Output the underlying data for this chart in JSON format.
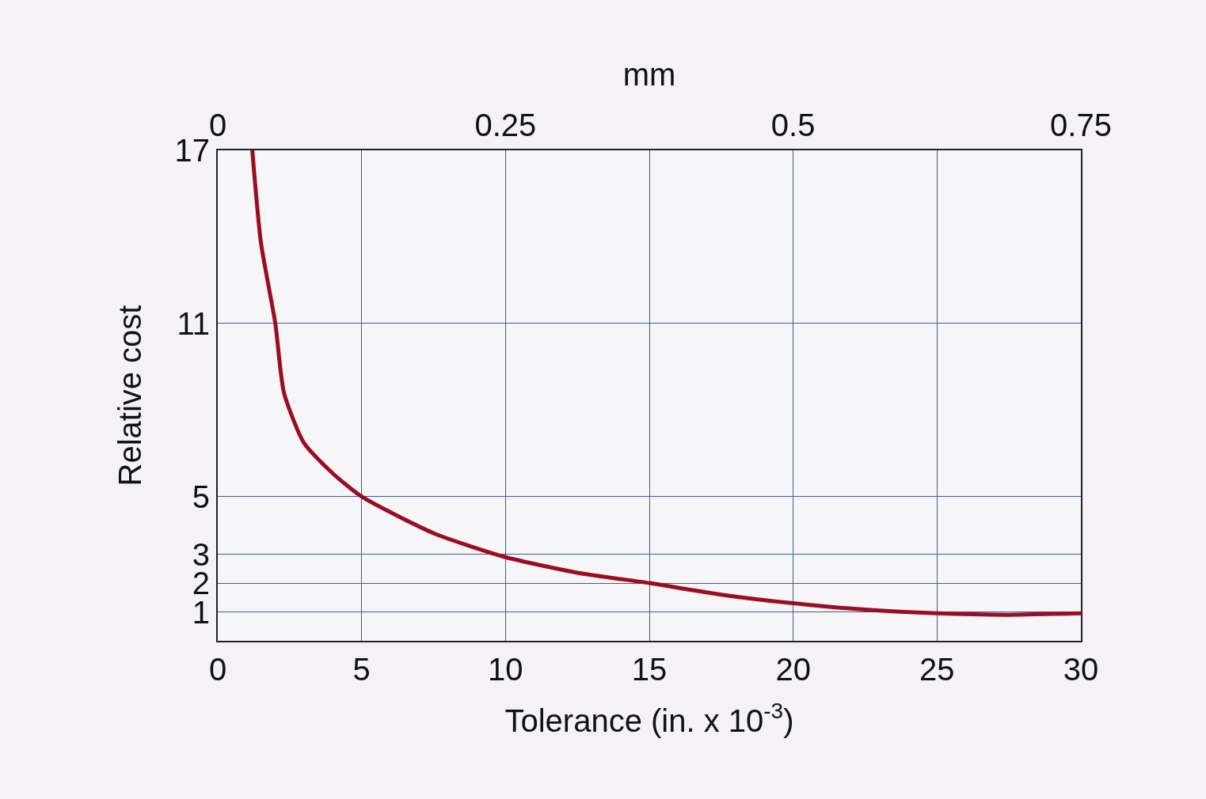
{
  "chart_data": {
    "type": "line",
    "xlabel": "Tolerance (in. x 10$^{-3}$)",
    "ylabel": "Relative cost",
    "x2label": "mm",
    "xlim": [
      0,
      30
    ],
    "xticks": [
      0,
      5,
      10,
      15,
      20,
      25,
      30
    ],
    "x2lim": [
      0,
      0.75
    ],
    "x2ticks": [
      0,
      0.25,
      0.5,
      0.75
    ],
    "ylim": [
      0,
      17
    ],
    "yticks": [
      1,
      2,
      3,
      5,
      11,
      17
    ],
    "grid": true,
    "marker": "none",
    "line_style": "solid",
    "series": [
      {
        "color": "#9b0d1f",
        "x": [
          1.2,
          1.5,
          2,
          2.3,
          3,
          4,
          5,
          7.5,
          10,
          12.5,
          15,
          17.5,
          20,
          22.5,
          25,
          27.5,
          30
        ],
        "values": [
          17,
          13.8,
          11,
          8.6,
          6.85,
          5.8,
          5,
          3.73,
          2.9,
          2.36,
          2,
          1.6,
          1.3,
          1.08,
          0.95,
          0.9,
          0.95
        ]
      }
    ]
  }
}
